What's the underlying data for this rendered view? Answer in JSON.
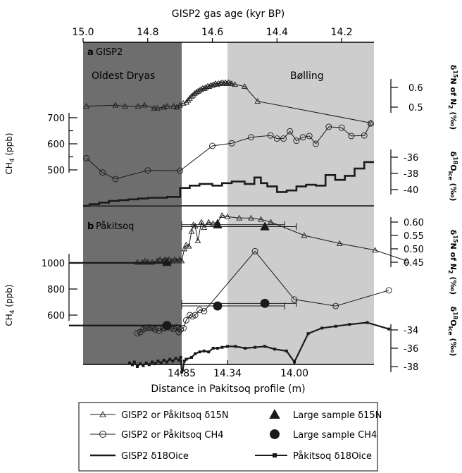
{
  "chart_data": [
    {
      "panel": "a",
      "type": "line",
      "title": "GISP2",
      "regions": [
        "Oldest Dryas",
        "Bølling"
      ],
      "x_axis": {
        "label": "GISP2 gas age (kyr BP)",
        "ticks": [
          "15.0",
          "14.8",
          "14.6",
          "14.4",
          "14.2"
        ],
        "tick_values": [
          15.0,
          14.8,
          14.6,
          14.4,
          14.2
        ],
        "lim": [
          15.0,
          14.1
        ],
        "split_at": 14.7,
        "bolling_start": 14.565
      },
      "y_axes": {
        "d15n": {
          "label": "δ15N of N2 (‰)",
          "ticks": [
            "0.6",
            "0.5"
          ],
          "lim": [
            0.39,
            0.68
          ]
        },
        "ch4": {
          "label": "CH4 (ppb)",
          "ticks": [
            "700",
            "650",
            "600",
            "550",
            "500"
          ],
          "lim": [
            380,
            760
          ]
        },
        "d18o": {
          "label": "δ18Oice (‰)",
          "ticks": [
            "-36",
            "-38",
            "-40"
          ],
          "lim": [
            -42.5,
            -33.5
          ]
        }
      },
      "series": [
        {
          "name": "GISP2 or Påkitsoq δ15N",
          "axis": "d15n",
          "marker": "triangle",
          "x": [
            14.99,
            14.9,
            14.87,
            14.83,
            14.81,
            14.78,
            14.77,
            14.75,
            14.74,
            14.72,
            14.71,
            14.7,
            14.69,
            14.68,
            14.675,
            14.67,
            14.665,
            14.66,
            14.655,
            14.65,
            14.645,
            14.64,
            14.635,
            14.63,
            14.625,
            14.62,
            14.615,
            14.61,
            14.605,
            14.6,
            14.595,
            14.59,
            14.585,
            14.58,
            14.575,
            14.57,
            14.565,
            14.56,
            14.555,
            14.55,
            14.545,
            14.54,
            14.53,
            14.5,
            14.46,
            14.11
          ],
          "y": [
            0.505,
            0.51,
            0.505,
            0.505,
            0.51,
            0.495,
            0.495,
            0.5,
            0.505,
            0.505,
            0.5,
            0.51,
            0.52,
            0.525,
            0.535,
            0.545,
            0.555,
            0.56,
            0.57,
            0.575,
            0.58,
            0.585,
            0.59,
            0.595,
            0.595,
            0.6,
            0.605,
            0.605,
            0.61,
            0.61,
            0.615,
            0.62,
            0.615,
            0.62,
            0.62,
            0.625,
            0.62,
            0.625,
            0.62,
            0.625,
            0.62,
            0.62,
            0.615,
            0.605,
            0.53,
            0.42
          ]
        },
        {
          "name": "GISP2 or Påkitsoq CH4",
          "axis": "ch4",
          "marker": "circle",
          "x": [
            14.99,
            14.94,
            14.9,
            14.8,
            14.7,
            14.6,
            14.54,
            14.48,
            14.42,
            14.4,
            14.38,
            14.36,
            14.34,
            14.32,
            14.3,
            14.28,
            14.24,
            14.2,
            14.17,
            14.13,
            14.11
          ],
          "y": [
            545,
            490,
            465,
            498,
            497,
            592,
            602,
            625,
            632,
            620,
            620,
            648,
            612,
            625,
            630,
            600,
            665,
            662,
            630,
            632,
            678
          ]
        },
        {
          "name": "GISP2 δ18Oice",
          "axis": "d18o",
          "marker": "step",
          "x": [
            15.0,
            14.98,
            14.95,
            14.92,
            14.89,
            14.86,
            14.83,
            14.8,
            14.77,
            14.74,
            14.7,
            14.67,
            14.64,
            14.6,
            14.57,
            14.54,
            14.5,
            14.47,
            14.45,
            14.43,
            14.4,
            14.37,
            14.34,
            14.31,
            14.28,
            14.25,
            14.22,
            14.19,
            14.16,
            14.13,
            14.1
          ],
          "y": [
            -42.0,
            -41.8,
            -41.6,
            -41.4,
            -41.3,
            -41.2,
            -41.1,
            -41.0,
            -41.0,
            -40.9,
            -39.8,
            -39.5,
            -39.3,
            -39.5,
            -39.2,
            -39.0,
            -39.3,
            -38.5,
            -39.2,
            -39.6,
            -40.3,
            -40.1,
            -39.6,
            -39.4,
            -39.5,
            -38.2,
            -38.8,
            -38.3,
            -37.4,
            -36.6,
            -36.6
          ]
        }
      ]
    },
    {
      "panel": "b",
      "type": "line",
      "title": "Påkitsoq",
      "x_axis": {
        "label": "Distance in Pakitsoq profile (m)",
        "ticks": [
          "14.85",
          "14.34",
          "14.00"
        ],
        "tick_values": [
          14.85,
          14.34,
          14.0
        ],
        "scale": "piecewise-linear"
      },
      "y_axes": {
        "d15n": {
          "label": "δ15N of N2 (‰)",
          "ticks": [
            "0.60",
            "0.55",
            "0.50",
            "0.45"
          ]
        },
        "ch4": {
          "label": "CH4 (ppb)",
          "ticks": [
            "1000",
            "800",
            "600"
          ]
        },
        "d18o": {
          "label": "δ18Oice (‰)",
          "ticks": [
            "-34",
            "-36",
            "-38"
          ]
        }
      },
      "reference_lines": [
        {
          "axis": "d15n",
          "value": 0.4475,
          "to": 14.95
        },
        {
          "axis": "ch4",
          "value": 520,
          "to": 14.855
        }
      ],
      "series": [
        {
          "name": "GISP2 or Påkitsoq δ15N",
          "axis": "d15n",
          "marker": "triangle",
          "points": [
            [
              15.3,
              0.45
            ],
            [
              15.25,
              0.45
            ],
            [
              15.22,
              0.455
            ],
            [
              15.19,
              0.45
            ],
            [
              15.15,
              0.45
            ],
            [
              15.1,
              0.455
            ],
            [
              15.07,
              0.46
            ],
            [
              15.04,
              0.455
            ],
            [
              15.02,
              0.46
            ],
            [
              15.0,
              0.455
            ],
            [
              14.98,
              0.46
            ],
            [
              14.95,
              0.455
            ],
            [
              14.92,
              0.46
            ],
            [
              14.9,
              0.455
            ],
            [
              14.87,
              0.46
            ],
            [
              14.85,
              0.455
            ],
            [
              14.82,
              0.5
            ],
            [
              14.8,
              0.515
            ],
            [
              14.77,
              0.51
            ],
            [
              14.74,
              0.565
            ],
            [
              14.72,
              0.59
            ],
            [
              14.7,
              0.585
            ],
            [
              14.67,
              0.53
            ],
            [
              14.63,
              0.6
            ],
            [
              14.6,
              0.58
            ],
            [
              14.55,
              0.6
            ],
            [
              14.5,
              0.595
            ],
            [
              14.45,
              0.6
            ],
            [
              14.4,
              0.625
            ],
            [
              14.34,
              0.62
            ],
            [
              14.28,
              0.615
            ],
            [
              14.22,
              0.615
            ],
            [
              14.17,
              0.61
            ],
            [
              14.12,
              0.6
            ],
            [
              13.95,
              0.55
            ],
            [
              13.77,
              0.52
            ],
            [
              13.59,
              0.495
            ],
            [
              13.43,
              0.455
            ]
          ]
        },
        {
          "name": "GISP2 or Påkitsoq CH4",
          "axis": "ch4",
          "marker": "circle",
          "points": [
            [
              15.3,
              460
            ],
            [
              15.27,
              470
            ],
            [
              15.24,
              490
            ],
            [
              15.21,
              500
            ],
            [
              15.18,
              505
            ],
            [
              15.15,
              500
            ],
            [
              15.12,
              490
            ],
            [
              15.08,
              480
            ],
            [
              15.04,
              500
            ],
            [
              15.02,
              500
            ],
            [
              14.99,
              510
            ],
            [
              14.96,
              500
            ],
            [
              14.93,
              495
            ],
            [
              14.9,
              505
            ],
            [
              14.88,
              470
            ],
            [
              14.86,
              490
            ],
            [
              14.83,
              500
            ],
            [
              14.8,
              560
            ],
            [
              14.76,
              600
            ],
            [
              14.73,
              590
            ],
            [
              14.7,
              600
            ],
            [
              14.65,
              640
            ],
            [
              14.6,
              630
            ],
            [
              14.2,
              1090
            ],
            [
              14.0,
              720
            ],
            [
              13.79,
              670
            ],
            [
              13.52,
              790
            ]
          ]
        },
        {
          "name": "Påkitsoq δ18Oice",
          "axis": "d18o",
          "marker": "square",
          "points": [
            [
              15.38,
              -37.6
            ],
            [
              15.35,
              -37.8
            ],
            [
              15.33,
              -37.5
            ],
            [
              15.3,
              -38.0
            ],
            [
              15.27,
              -37.7
            ],
            [
              15.24,
              -37.9
            ],
            [
              15.21,
              -37.6
            ],
            [
              15.18,
              -37.8
            ],
            [
              15.15,
              -37.5
            ],
            [
              15.12,
              -37.7
            ],
            [
              15.09,
              -37.4
            ],
            [
              15.06,
              -37.6
            ],
            [
              15.03,
              -37.3
            ],
            [
              15.0,
              -37.5
            ],
            [
              14.97,
              -37.2
            ],
            [
              14.94,
              -37.4
            ],
            [
              14.91,
              -37.1
            ],
            [
              14.88,
              -37.3
            ],
            [
              14.86,
              -37.0
            ],
            [
              14.85,
              -38.6
            ],
            [
              14.84,
              -38.4
            ],
            [
              14.82,
              -37.4
            ],
            [
              14.8,
              -37.2
            ],
            [
              14.74,
              -37.0
            ],
            [
              14.7,
              -36.6
            ],
            [
              14.65,
              -36.4
            ],
            [
              14.6,
              -36.3
            ],
            [
              14.55,
              -36.4
            ],
            [
              14.5,
              -36.0
            ],
            [
              14.45,
              -36.0
            ],
            [
              14.4,
              -35.9
            ],
            [
              14.34,
              -35.8
            ],
            [
              14.3,
              -35.8
            ],
            [
              14.25,
              -36.0
            ],
            [
              14.2,
              -35.9
            ],
            [
              14.15,
              -35.8
            ],
            [
              14.1,
              -36.1
            ],
            [
              14.04,
              -36.3
            ],
            [
              14.0,
              -37.5
            ],
            [
              13.93,
              -34.4
            ],
            [
              13.86,
              -33.8
            ],
            [
              13.79,
              -33.6
            ],
            [
              13.72,
              -33.4
            ],
            [
              13.63,
              -33.2
            ],
            [
              13.52,
              -33.9
            ]
          ]
        },
        {
          "name": "Large sample δ15N",
          "axis": "d15n",
          "marker": "filled-triangle",
          "points": [
            [
              15.0,
              0.45
            ],
            [
              14.45,
              0.59
            ],
            [
              14.15,
              0.583
            ]
          ],
          "error_bars": [
            null,
            [
              14.85,
              14.05
            ],
            [
              14.85,
              13.99
            ]
          ]
        },
        {
          "name": "Large sample CH4",
          "axis": "ch4",
          "marker": "filled-circle",
          "points": [
            [
              15.0,
              520
            ],
            [
              14.45,
              670
            ],
            [
              14.15,
              690
            ]
          ],
          "error_bars": [
            null,
            [
              14.85,
              14.05
            ],
            [
              14.85,
              13.99
            ]
          ]
        }
      ]
    }
  ],
  "legend": [
    {
      "label": "GISP2 or Påkitsoq δ15N",
      "marker": "triangle"
    },
    {
      "label": "Large sample δ15N",
      "marker": "filled-triangle"
    },
    {
      "label": "GISP2 or Påkitsoq CH4",
      "marker": "circle"
    },
    {
      "label": "Large sample CH4",
      "marker": "filled-circle"
    },
    {
      "label": "GISP2 δ18Oice",
      "marker": "thick-line"
    },
    {
      "label": "Påkitsoq δ18Oice",
      "marker": "line-square"
    }
  ],
  "colors": {
    "oldest_dryas_shading": "#6e6e6e",
    "bolling_shading": "#cdcdcd",
    "lines": "#1a1a1a"
  }
}
